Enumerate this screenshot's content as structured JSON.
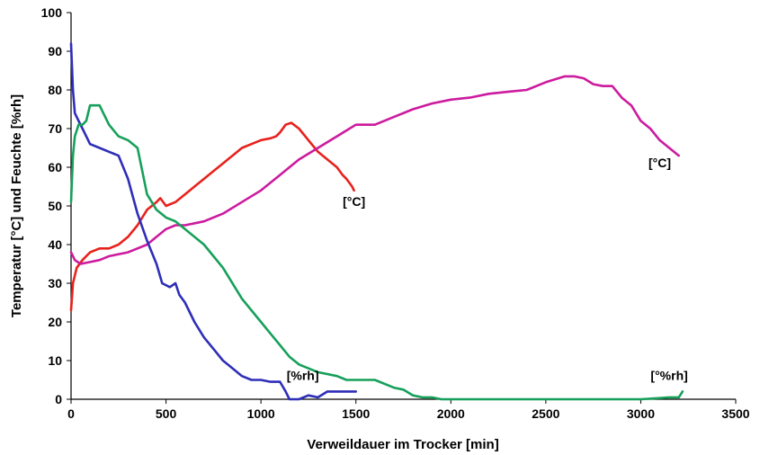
{
  "chart_data": {
    "type": "line",
    "title": "",
    "xlabel": "Verweildauer im Trocker [min]",
    "ylabel": "Temperatur [°C] und Feuchte [%rh]",
    "xlim": [
      0,
      3500
    ],
    "ylim": [
      0,
      100
    ],
    "xticks": [
      0,
      500,
      1000,
      1500,
      2000,
      2500,
      3000,
      3500
    ],
    "yticks": [
      0,
      10,
      20,
      30,
      40,
      50,
      60,
      70,
      80,
      90,
      100
    ],
    "xtick_labels": [
      "0",
      "500",
      "1000",
      "1500",
      "2000",
      "2500",
      "3000",
      "3500"
    ],
    "ytick_labels": [
      "0",
      "10",
      "20",
      "30",
      "40",
      "50",
      "60",
      "70",
      "80",
      "90",
      "100"
    ],
    "grid": false,
    "legend": "none",
    "series": [
      {
        "color": "#e8211c",
        "points": [
          [
            0,
            23
          ],
          [
            10,
            30
          ],
          [
            30,
            34
          ],
          [
            60,
            36
          ],
          [
            100,
            38
          ],
          [
            150,
            39
          ],
          [
            200,
            39
          ],
          [
            250,
            40
          ],
          [
            300,
            42
          ],
          [
            350,
            45
          ],
          [
            400,
            49
          ],
          [
            450,
            51
          ],
          [
            470,
            52
          ],
          [
            500,
            50
          ],
          [
            550,
            51
          ],
          [
            600,
            53
          ],
          [
            650,
            55
          ],
          [
            700,
            57
          ],
          [
            750,
            59
          ],
          [
            800,
            61
          ],
          [
            850,
            63
          ],
          [
            900,
            65
          ],
          [
            950,
            66
          ],
          [
            1000,
            67
          ],
          [
            1050,
            67.5
          ],
          [
            1080,
            68
          ],
          [
            1100,
            69
          ],
          [
            1130,
            71
          ],
          [
            1160,
            71.5
          ],
          [
            1200,
            70
          ],
          [
            1250,
            67
          ],
          [
            1300,
            64
          ],
          [
            1350,
            62
          ],
          [
            1400,
            60
          ],
          [
            1430,
            58
          ],
          [
            1450,
            57
          ],
          [
            1480,
            55
          ],
          [
            1490,
            54
          ]
        ]
      },
      {
        "color": "#cc1b9e",
        "points": [
          [
            0,
            38
          ],
          [
            20,
            36
          ],
          [
            50,
            35
          ],
          [
            100,
            35.5
          ],
          [
            150,
            36
          ],
          [
            200,
            37
          ],
          [
            300,
            38
          ],
          [
            400,
            40
          ],
          [
            450,
            42
          ],
          [
            500,
            44
          ],
          [
            550,
            45
          ],
          [
            600,
            45
          ],
          [
            700,
            46
          ],
          [
            800,
            48
          ],
          [
            900,
            51
          ],
          [
            1000,
            54
          ],
          [
            1100,
            58
          ],
          [
            1200,
            62
          ],
          [
            1300,
            65
          ],
          [
            1400,
            68
          ],
          [
            1500,
            71
          ],
          [
            1600,
            71
          ],
          [
            1700,
            73
          ],
          [
            1800,
            75
          ],
          [
            1900,
            76.5
          ],
          [
            2000,
            77.5
          ],
          [
            2100,
            78
          ],
          [
            2200,
            79
          ],
          [
            2300,
            79.5
          ],
          [
            2400,
            80
          ],
          [
            2500,
            82
          ],
          [
            2600,
            83.5
          ],
          [
            2650,
            83.5
          ],
          [
            2700,
            83
          ],
          [
            2750,
            81.5
          ],
          [
            2800,
            81
          ],
          [
            2850,
            81
          ],
          [
            2900,
            78
          ],
          [
            2950,
            76
          ],
          [
            3000,
            72
          ],
          [
            3050,
            70
          ],
          [
            3100,
            67
          ],
          [
            3150,
            65
          ],
          [
            3200,
            63
          ]
        ]
      },
      {
        "color": "#2e2eb8",
        "points": [
          [
            0,
            92
          ],
          [
            10,
            80
          ],
          [
            20,
            74
          ],
          [
            40,
            72
          ],
          [
            60,
            70
          ],
          [
            80,
            68
          ],
          [
            100,
            66
          ],
          [
            150,
            65
          ],
          [
            200,
            64
          ],
          [
            250,
            63
          ],
          [
            300,
            57
          ],
          [
            350,
            48
          ],
          [
            400,
            41
          ],
          [
            450,
            35
          ],
          [
            480,
            30
          ],
          [
            520,
            29
          ],
          [
            550,
            30
          ],
          [
            570,
            27
          ],
          [
            600,
            25
          ],
          [
            650,
            20
          ],
          [
            700,
            16
          ],
          [
            750,
            13
          ],
          [
            800,
            10
          ],
          [
            850,
            8
          ],
          [
            900,
            6
          ],
          [
            950,
            5
          ],
          [
            1000,
            5
          ],
          [
            1050,
            4.5
          ],
          [
            1100,
            4.5
          ],
          [
            1130,
            2
          ],
          [
            1150,
            0
          ],
          [
            1200,
            0
          ],
          [
            1250,
            1
          ],
          [
            1300,
            0.5
          ],
          [
            1350,
            2
          ],
          [
            1400,
            2
          ],
          [
            1450,
            2
          ],
          [
            1500,
            2
          ]
        ]
      },
      {
        "color": "#16a05a",
        "points": [
          [
            0,
            51
          ],
          [
            10,
            63
          ],
          [
            20,
            68
          ],
          [
            40,
            71
          ],
          [
            60,
            71
          ],
          [
            80,
            72
          ],
          [
            100,
            76
          ],
          [
            150,
            76
          ],
          [
            200,
            71
          ],
          [
            250,
            68
          ],
          [
            300,
            67
          ],
          [
            350,
            65
          ],
          [
            400,
            53
          ],
          [
            450,
            49
          ],
          [
            500,
            47
          ],
          [
            550,
            46
          ],
          [
            600,
            44
          ],
          [
            700,
            40
          ],
          [
            800,
            34
          ],
          [
            900,
            26
          ],
          [
            1000,
            20
          ],
          [
            1050,
            17
          ],
          [
            1100,
            14
          ],
          [
            1150,
            11
          ],
          [
            1200,
            9
          ],
          [
            1300,
            7
          ],
          [
            1400,
            6
          ],
          [
            1450,
            5
          ],
          [
            1500,
            5
          ],
          [
            1600,
            5
          ],
          [
            1700,
            3
          ],
          [
            1750,
            2.5
          ],
          [
            1800,
            1
          ],
          [
            1850,
            0.5
          ],
          [
            1900,
            0.5
          ],
          [
            1950,
            0
          ],
          [
            2000,
            0
          ],
          [
            2500,
            0
          ],
          [
            3000,
            0
          ],
          [
            3100,
            0.3
          ],
          [
            3150,
            0.5
          ],
          [
            3200,
            0.5
          ],
          [
            3220,
            2
          ]
        ]
      }
    ],
    "annotations": [
      {
        "text": "[°C]",
        "x": 1490,
        "y": 50
      },
      {
        "text": "[°C]",
        "x": 3100,
        "y": 60
      },
      {
        "text": "[%rh]",
        "x": 1220,
        "y": 5
      },
      {
        "text": "[°%rh]",
        "x": 3150,
        "y": 5
      }
    ]
  }
}
